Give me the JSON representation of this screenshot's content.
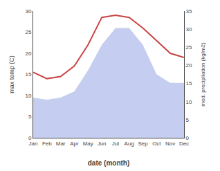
{
  "chart_data": {
    "type": "line",
    "categories": [
      "Jan",
      "Feb",
      "Mar",
      "Apr",
      "May",
      "Jun",
      "Jul",
      "Aug",
      "Sep",
      "Oct",
      "Nov",
      "Dec"
    ],
    "series": [
      {
        "type": "area",
        "color": "#c5cef0",
        "values": [
          9.5,
          9.0,
          9.5,
          11.0,
          16.0,
          22.0,
          26.0,
          26.0,
          22.0,
          15.0,
          13.0,
          13.0
        ]
      },
      {
        "type": "line",
        "color": "#cc4444",
        "values": [
          15.5,
          14.0,
          14.5,
          17.0,
          22.0,
          28.5,
          29.0,
          28.5,
          26.0,
          23.0,
          20.0,
          19.0
        ]
      }
    ],
    "xlabel": "date (month)",
    "ylabel": "max temp (C)",
    "y2label": "med. precipitation (kg/m2)",
    "ylim": [
      0,
      30
    ],
    "yticks": [
      0,
      5,
      10,
      15,
      20,
      25,
      30
    ],
    "y2lim": [
      0,
      35
    ],
    "y2ticks": [
      0,
      5,
      10,
      15,
      20,
      25,
      30,
      35
    ],
    "grid": false
  }
}
